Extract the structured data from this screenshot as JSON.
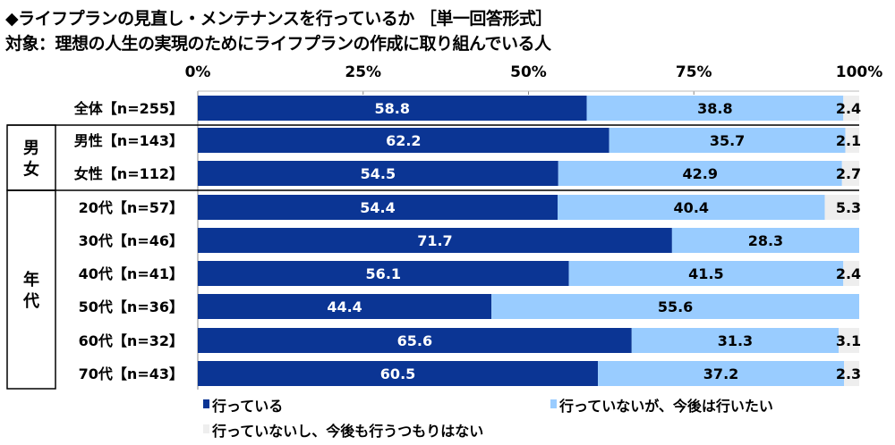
{
  "title": "◆ライフプランの見直し・メンテナンスを行っているか ［単一回答形式］",
  "subtitle": "対象：理想の人生の実現のためにライフプランの作成に取り組んでいる人",
  "chart_data": {
    "type": "bar",
    "orientation": "horizontal",
    "stacked": true,
    "xlim": [
      0,
      100
    ],
    "x_ticks": [
      "0%",
      "25%",
      "50%",
      "75%",
      "100%"
    ],
    "categories": [
      "全体【n=255】",
      "男性【n=143】",
      "女性【n=112】",
      "20代【n=57】",
      "30代【n=46】",
      "40代【n=41】",
      "50代【n=36】",
      "60代【n=32】",
      "70代【n=43】"
    ],
    "groups": [
      {
        "label": "男女",
        "rows": [
          1,
          2
        ]
      },
      {
        "label": "年代",
        "rows": [
          3,
          4,
          5,
          6,
          7,
          8
        ]
      }
    ],
    "series": [
      {
        "name": "行っている",
        "color": "#0b3594",
        "values": [
          58.8,
          62.2,
          54.5,
          54.4,
          71.7,
          56.1,
          44.4,
          65.6,
          60.5
        ]
      },
      {
        "name": "行っていないが、今後は行いたい",
        "color": "#99ccff",
        "values": [
          38.8,
          35.7,
          42.9,
          40.4,
          28.3,
          41.5,
          55.6,
          31.3,
          37.2
        ]
      },
      {
        "name": "行っていないし、今後も行うつもりはない",
        "color": "#eeeeee",
        "values": [
          2.4,
          2.1,
          2.7,
          5.3,
          null,
          2.4,
          null,
          3.1,
          2.3
        ]
      }
    ],
    "legend": "bottom"
  }
}
